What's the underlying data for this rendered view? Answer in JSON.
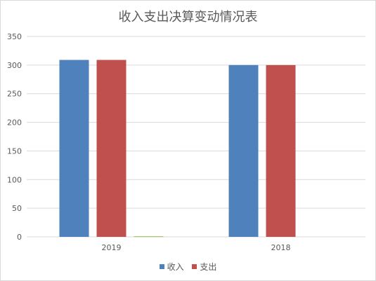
{
  "chart_data": {
    "type": "bar",
    "title": "收入支出决算变动情况表",
    "categories": [
      "2019",
      "2018"
    ],
    "series": [
      {
        "name": "收入",
        "values": [
          309,
          300
        ],
        "color": "#4f81bd"
      },
      {
        "name": "支出",
        "values": [
          309,
          300
        ],
        "color": "#c0504d"
      },
      {
        "values": [
          1,
          0
        ],
        "color": "#9bbb59"
      }
    ],
    "ylim": [
      0,
      350
    ],
    "yticks": [
      0,
      50,
      100,
      150,
      200,
      250,
      300,
      350
    ],
    "grid": true,
    "legend_position": "bottom"
  }
}
